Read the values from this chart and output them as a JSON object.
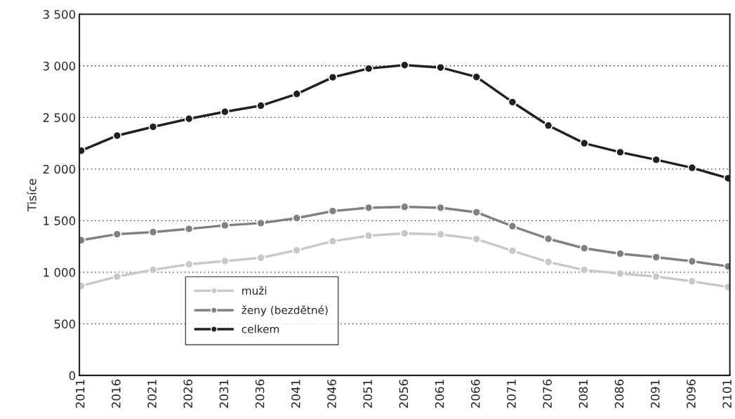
{
  "chart_data": {
    "type": "line",
    "ylabel": "Tisíce",
    "categories": [
      "2011",
      "2016",
      "2021",
      "2026",
      "2031",
      "2036",
      "2041",
      "2046",
      "2051",
      "2056",
      "2061",
      "2066",
      "2071",
      "2076",
      "2081",
      "2086",
      "2091",
      "2096",
      "2101"
    ],
    "series": [
      {
        "name": "muži",
        "color": "#c8c8c8",
        "values": [
          867,
          958,
          1023,
          1077,
          1108,
          1140,
          1213,
          1301,
          1354,
          1377,
          1367,
          1322,
          1207,
          1099,
          1022,
          987,
          958,
          912,
          857
        ]
      },
      {
        "name": "ženy (bezdětné)",
        "color": "#808080",
        "values": [
          1310,
          1369,
          1389,
          1420,
          1454,
          1476,
          1525,
          1593,
          1625,
          1633,
          1625,
          1581,
          1446,
          1324,
          1232,
          1180,
          1146,
          1106,
          1056
        ]
      },
      {
        "name": "celkem",
        "color": "#231f20",
        "values": [
          2178,
          2324,
          2409,
          2487,
          2555,
          2614,
          2728,
          2889,
          2974,
          3007,
          2984,
          2892,
          2649,
          2422,
          2250,
          2163,
          2090,
          2012,
          1911
        ]
      }
    ],
    "ylim": [
      0,
      3500
    ],
    "yticks": [
      0,
      500,
      {
        "value": 1000,
        "label": "1 000"
      },
      {
        "value": 1500,
        "label": "1 500"
      },
      {
        "value": 2000,
        "label": "2 000"
      },
      {
        "value": 2500,
        "label": "2 500"
      },
      {
        "value": 3000,
        "label": "3 000"
      },
      {
        "value": 3500,
        "label": "3 500"
      }
    ],
    "grid": "y",
    "legend": "bottom left",
    "marker": "circle",
    "line_style": "solid"
  }
}
